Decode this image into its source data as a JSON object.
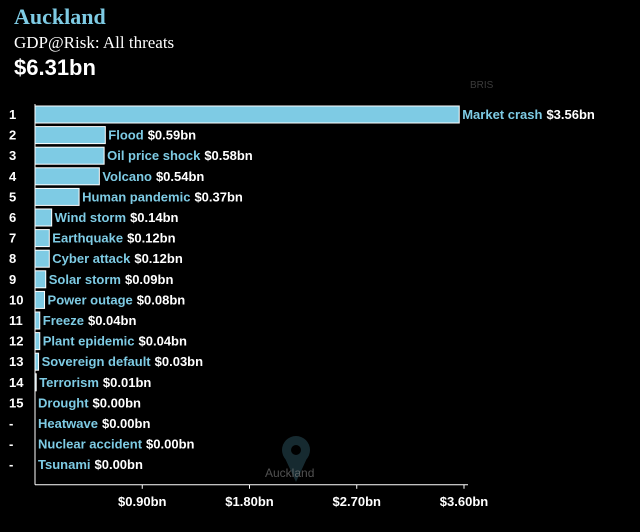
{
  "header": {
    "city": "Auckland",
    "subtitle": "GDP@Risk: All threats",
    "total": "$6.31bn"
  },
  "map": {
    "label": "Auckland",
    "top_label": "BRIS"
  },
  "chart_data": {
    "type": "bar",
    "orientation": "horizontal",
    "title": "GDP@Risk: All threats",
    "xlim": [
      0,
      3.6
    ],
    "xticks": [
      {
        "value": 0.9,
        "label": "$0.90bn"
      },
      {
        "value": 1.8,
        "label": "$1.80bn"
      },
      {
        "value": 2.7,
        "label": "$2.70bn"
      },
      {
        "value": 3.6,
        "label": "$3.60bn"
      }
    ],
    "rows": [
      {
        "rank": "1",
        "name": "Market crash",
        "value": 3.56,
        "label": "$3.56bn"
      },
      {
        "rank": "2",
        "name": "Flood",
        "value": 0.59,
        "label": "$0.59bn"
      },
      {
        "rank": "3",
        "name": "Oil price shock",
        "value": 0.58,
        "label": "$0.58bn"
      },
      {
        "rank": "4",
        "name": "Volcano",
        "value": 0.54,
        "label": "$0.54bn"
      },
      {
        "rank": "5",
        "name": "Human pandemic",
        "value": 0.37,
        "label": "$0.37bn"
      },
      {
        "rank": "6",
        "name": "Wind storm",
        "value": 0.14,
        "label": "$0.14bn"
      },
      {
        "rank": "7",
        "name": "Earthquake",
        "value": 0.12,
        "label": "$0.12bn"
      },
      {
        "rank": "8",
        "name": "Cyber attack",
        "value": 0.12,
        "label": "$0.12bn"
      },
      {
        "rank": "9",
        "name": "Solar storm",
        "value": 0.09,
        "label": "$0.09bn"
      },
      {
        "rank": "10",
        "name": "Power outage",
        "value": 0.08,
        "label": "$0.08bn"
      },
      {
        "rank": "11",
        "name": "Freeze",
        "value": 0.04,
        "label": "$0.04bn"
      },
      {
        "rank": "12",
        "name": "Plant epidemic",
        "value": 0.04,
        "label": "$0.04bn"
      },
      {
        "rank": "13",
        "name": "Sovereign default",
        "value": 0.03,
        "label": "$0.03bn"
      },
      {
        "rank": "14",
        "name": "Terrorism",
        "value": 0.01,
        "label": "$0.01bn"
      },
      {
        "rank": "15",
        "name": "Drought",
        "value": 0.0,
        "label": "$0.00bn"
      },
      {
        "rank": "-",
        "name": "Heatwave",
        "value": 0.0,
        "label": "$0.00bn"
      },
      {
        "rank": "-",
        "name": "Nuclear accident",
        "value": 0.0,
        "label": "$0.00bn"
      },
      {
        "rank": "-",
        "name": "Tsunami",
        "value": 0.0,
        "label": "$0.00bn"
      }
    ],
    "colors": {
      "bar": "#7ecbe4",
      "bar_stroke": "#ffffff",
      "label": "#7ecbe4",
      "value": "#ffffff"
    }
  }
}
